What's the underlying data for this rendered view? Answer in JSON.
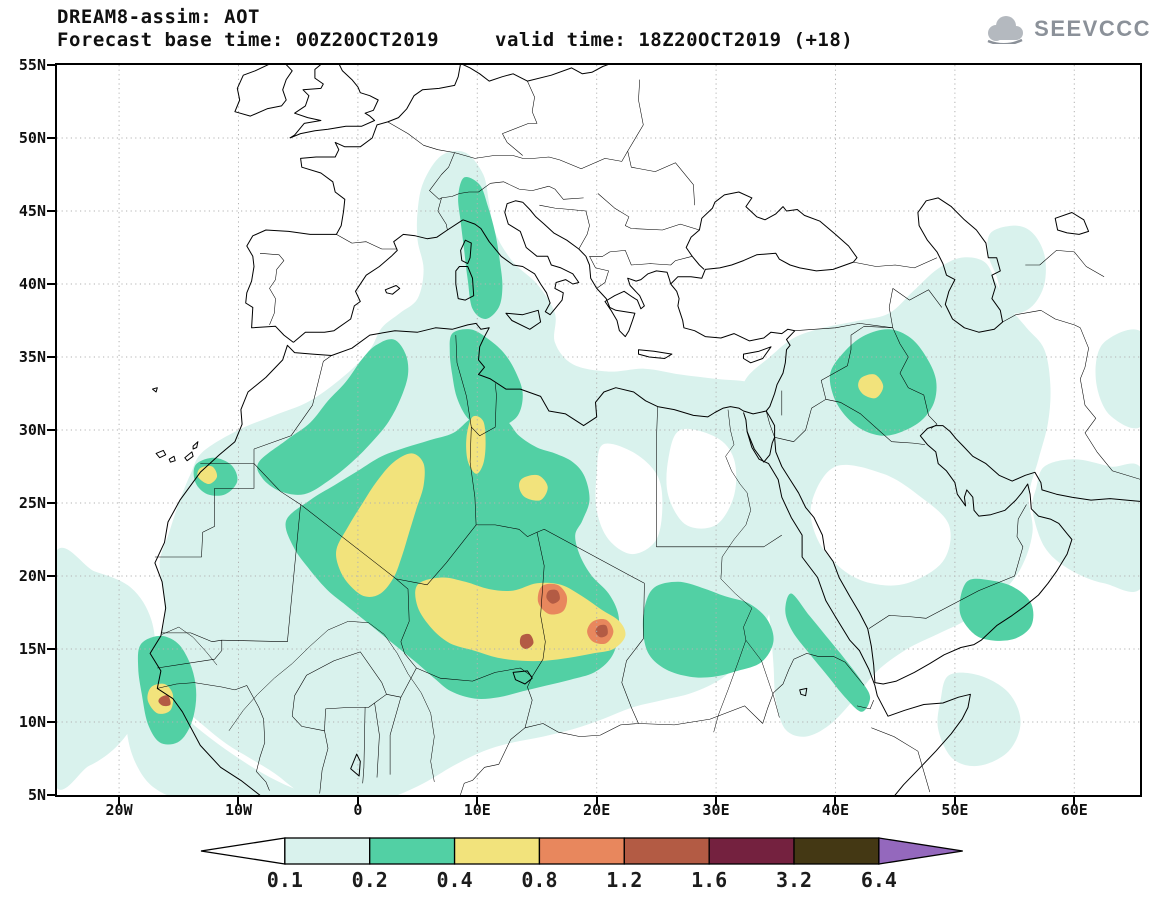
{
  "header": {
    "title": "DREAM8-assim: AOT",
    "subtitle_left": "Forecast base time: 00Z20OCT2019",
    "subtitle_right": "valid time: 18Z20OCT2019 (+18)",
    "logo_text": "SEEVCCC"
  },
  "axes": {
    "y_ticks": [
      "55N",
      "50N",
      "45N",
      "40N",
      "35N",
      "30N",
      "25N",
      "20N",
      "15N",
      "10N",
      "5N"
    ],
    "x_ticks": [
      "20W",
      "10W",
      "0",
      "10E",
      "20E",
      "30E",
      "40E",
      "50E",
      "60E"
    ]
  },
  "legend": {
    "labels": [
      "0.1",
      "0.2",
      "0.4",
      "0.8",
      "1.2",
      "1.6",
      "3.2",
      "6.4"
    ]
  },
  "chart_data": {
    "type": "heatmap",
    "title": "DREAM8-assim: AOT",
    "variable": "AOT (aerosol optical thickness), filled contours over geographic map",
    "model": "DREAM8-assim",
    "forecast_base_time": "00Z20OCT2019",
    "valid_time": "18Z20OCT2019",
    "forecast_hour": "+18",
    "x_axis": {
      "tick_labels": [
        "20W",
        "10W",
        "0",
        "10E",
        "20E",
        "30E",
        "40E",
        "50E",
        "60E"
      ],
      "lon_range_deg": [
        -25.2,
        65.5
      ]
    },
    "y_axis": {
      "tick_labels": [
        "55N",
        "50N",
        "45N",
        "40N",
        "35N",
        "30N",
        "25N",
        "20N",
        "15N",
        "10N",
        "5N"
      ],
      "lat_range_deg": [
        5,
        55
      ]
    },
    "grid": "dotted, every 5 deg latitude / 10 deg longitude",
    "legend_levels": [
      0.1,
      0.2,
      0.4,
      0.8,
      1.2,
      1.6,
      3.2,
      6.4
    ],
    "legend_colors": [
      "#ffffff",
      "#d9f2ed",
      "#52d0a4",
      "#f2e37c",
      "#e8875d",
      "#b35b44",
      "#74213f",
      "#443814",
      "#9468bd"
    ],
    "legend_arrows": {
      "left_below_min": "#ffffff",
      "right_above_max": "#9468bd"
    },
    "aot_maxima": [
      {
        "location": "Chad, ~16E 18.5N",
        "value_range": "1.2-1.6"
      },
      {
        "location": "Chad/Sudan border, ~20E 16N",
        "value_range": "0.8-1.6"
      },
      {
        "location": "Guinea-Bissau coast, ~16W 11.5N",
        "value_range": "1.2-1.6"
      },
      {
        "location": "central Algeria band, 0-5E 19-28N",
        "value_range": "0.4-0.8"
      },
      {
        "location": "Algeria/Libya border, ~10E 27-31N",
        "value_range": "0.4-0.8"
      },
      {
        "location": "Chad basin yellow area, 5-22E 14-20N",
        "value_range": "0.4-0.8"
      },
      {
        "location": "Iraq, ~43E 33N",
        "value_range": "0.4-0.8"
      },
      {
        "location": "Western Sahara coast, ~12.5W 27N",
        "value_range": "0.4-0.8"
      }
    ],
    "broad_features": [
      "0.2-0.4 dust plume across the Sahara from Mauritania/Morocco to Sudan",
      "0.2-0.4 plume over the Tyrrhenian Sea / Italy / Alps",
      "0.2-0.4 area over Iraq and the Zagros region",
      "0.2-0.4 strips along the SW Red Sea coast, Senegal coast and southern Arabia/Oman",
      "0.1-0.2 over the tropical Atlantic, Gulf of Guinea coast, eastern Mediterranean, Arabian Peninsula rim, Caspian region and northern Arabian Sea"
    ]
  }
}
